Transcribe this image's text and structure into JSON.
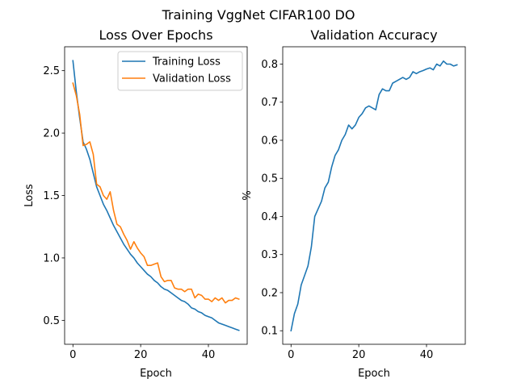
{
  "figure": {
    "suptitle": "Training VggNet CIFAR100 DO"
  },
  "colors": {
    "training": "#1f77b4",
    "validation": "#ff7f0e"
  },
  "chart_data": [
    {
      "type": "line",
      "title": "Loss Over Epochs",
      "xlabel": "Epoch",
      "ylabel": "Loss",
      "xlim": [
        -2.45,
        51.45
      ],
      "ylim": [
        0.3085,
        2.6915
      ],
      "xticks": [
        0,
        20,
        40
      ],
      "yticks": [
        0.5,
        1.0,
        1.5,
        2.0,
        2.5
      ],
      "ytick_labels": [
        "0.5",
        "1.0",
        "1.5",
        "2.0",
        "2.5"
      ],
      "grid": false,
      "legend": "top-right",
      "x": [
        0,
        1,
        2,
        3,
        4,
        5,
        6,
        7,
        8,
        9,
        10,
        11,
        12,
        13,
        14,
        15,
        16,
        17,
        18,
        19,
        20,
        21,
        22,
        23,
        24,
        25,
        26,
        27,
        28,
        29,
        30,
        31,
        32,
        33,
        34,
        35,
        36,
        37,
        38,
        39,
        40,
        41,
        42,
        43,
        44,
        45,
        46,
        47,
        48,
        49
      ],
      "series": [
        {
          "name": "Training Loss",
          "color": "#1f77b4",
          "values": [
            2.58,
            2.33,
            2.12,
            1.93,
            1.87,
            1.79,
            1.68,
            1.57,
            1.5,
            1.43,
            1.38,
            1.32,
            1.26,
            1.21,
            1.16,
            1.11,
            1.07,
            1.03,
            1.0,
            0.96,
            0.93,
            0.9,
            0.87,
            0.85,
            0.82,
            0.8,
            0.77,
            0.75,
            0.74,
            0.72,
            0.7,
            0.68,
            0.66,
            0.65,
            0.63,
            0.6,
            0.59,
            0.57,
            0.56,
            0.54,
            0.53,
            0.52,
            0.5,
            0.48,
            0.47,
            0.46,
            0.45,
            0.44,
            0.43,
            0.42
          ]
        },
        {
          "name": "Validation Loss",
          "color": "#ff7f0e",
          "values": [
            2.4,
            2.3,
            2.15,
            1.9,
            1.91,
            1.93,
            1.83,
            1.59,
            1.57,
            1.5,
            1.47,
            1.53,
            1.38,
            1.27,
            1.25,
            1.19,
            1.14,
            1.07,
            1.13,
            1.08,
            1.04,
            1.01,
            0.94,
            0.94,
            0.95,
            0.96,
            0.85,
            0.81,
            0.82,
            0.82,
            0.76,
            0.75,
            0.75,
            0.73,
            0.75,
            0.75,
            0.68,
            0.71,
            0.7,
            0.67,
            0.67,
            0.65,
            0.68,
            0.66,
            0.68,
            0.64,
            0.66,
            0.66,
            0.68,
            0.67
          ]
        }
      ]
    },
    {
      "type": "line",
      "title": "Validation Accuracy",
      "xlabel": "Epoch",
      "ylabel": "%",
      "xlim": [
        -2.45,
        51.45
      ],
      "ylim": [
        0.0645,
        0.8455
      ],
      "xticks": [
        0,
        20,
        40
      ],
      "yticks": [
        0.1,
        0.2,
        0.3,
        0.4,
        0.5,
        0.6,
        0.7,
        0.8
      ],
      "ytick_labels": [
        "0.1",
        "0.2",
        "0.3",
        "0.4",
        "0.5",
        "0.6",
        "0.7",
        "0.8"
      ],
      "grid": false,
      "x": [
        0,
        1,
        2,
        3,
        4,
        5,
        6,
        7,
        8,
        9,
        10,
        11,
        12,
        13,
        14,
        15,
        16,
        17,
        18,
        19,
        20,
        21,
        22,
        23,
        24,
        25,
        26,
        27,
        28,
        29,
        30,
        31,
        32,
        33,
        34,
        35,
        36,
        37,
        38,
        39,
        40,
        41,
        42,
        43,
        44,
        45,
        46,
        47,
        48,
        49
      ],
      "series": [
        {
          "color": "#1f77b4",
          "values": [
            0.1,
            0.145,
            0.17,
            0.22,
            0.245,
            0.27,
            0.32,
            0.4,
            0.42,
            0.44,
            0.475,
            0.49,
            0.53,
            0.56,
            0.575,
            0.6,
            0.615,
            0.64,
            0.63,
            0.64,
            0.66,
            0.67,
            0.685,
            0.69,
            0.685,
            0.68,
            0.72,
            0.735,
            0.73,
            0.73,
            0.75,
            0.755,
            0.76,
            0.765,
            0.76,
            0.765,
            0.78,
            0.775,
            0.78,
            0.783,
            0.787,
            0.79,
            0.785,
            0.8,
            0.795,
            0.808,
            0.8,
            0.8,
            0.795,
            0.798
          ]
        }
      ]
    }
  ]
}
